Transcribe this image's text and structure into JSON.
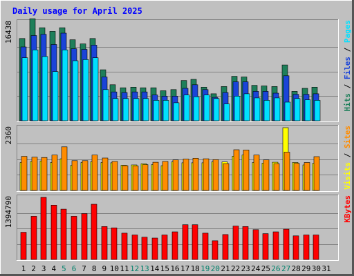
{
  "colors": {
    "title": "#0000ff",
    "background": "#c0c0c0",
    "hits": "#1e7f5a",
    "files": "#1a44d8",
    "pages": "#00e0ff",
    "visits": "#ffff00",
    "sites": "#ff8c00",
    "kbytes": "#ff0000",
    "weekend_label": "#00806a"
  },
  "chart_data": {
    "type": "bar",
    "title": "Daily usage for April 2025",
    "days": [
      "1",
      "2",
      "3",
      "4",
      "5",
      "6",
      "7",
      "8",
      "9",
      "10",
      "11",
      "12",
      "13",
      "14",
      "15",
      "16",
      "17",
      "18",
      "19",
      "20",
      "21",
      "22",
      "23",
      "24",
      "25",
      "26",
      "27",
      "28",
      "29",
      "30",
      "31"
    ],
    "weekend_days": [
      "5",
      "6",
      "12",
      "13",
      "19",
      "20",
      "26",
      "27"
    ],
    "panels": [
      {
        "ylabel": "16438",
        "ymax": 16438,
        "side_labels": [
          "Hits",
          "Files",
          "Pages"
        ],
        "series": [
          {
            "name": "Hits",
            "values": [
              13700,
              17000,
              15500,
              14900,
              15500,
              13500,
              12800,
              13700,
              8500,
              6000,
              5500,
              5600,
              5500,
              5500,
              5000,
              5200,
              6700,
              6900,
              5600,
              4500,
              5700,
              7400,
              7300,
              5900,
              5800,
              5700,
              9300,
              4900,
              5400,
              5600
            ]
          },
          {
            "name": "Files",
            "values": [
              12300,
              14200,
              14400,
              12700,
              14600,
              12000,
              11900,
              12600,
              7300,
              4800,
              4700,
              4800,
              4800,
              4300,
              4100,
              4100,
              5400,
              6000,
              5200,
              3900,
              4700,
              6500,
              6500,
              4900,
              4900,
              4600,
              7500,
              4400,
              4400,
              4500
            ]
          },
          {
            "name": "Pages",
            "values": [
              10500,
              11800,
              10700,
              8200,
              11800,
              10000,
              10200,
              10500,
              5200,
              3700,
              3700,
              3700,
              3700,
              3400,
              3400,
              3000,
              4300,
              4000,
              4300,
              3700,
              2800,
              4100,
              4500,
              3800,
              3400,
              3800,
              3100,
              3700,
              3500,
              3400
            ]
          }
        ]
      },
      {
        "ylabel": "2360",
        "ymax": 2360,
        "side_labels": [
          "Visits",
          "Sites"
        ],
        "series": [
          {
            "name": "Visits",
            "values": [
              1050,
              1090,
              1110,
              1050,
              1190,
              940,
              1050,
              1080,
              1050,
              1040,
              950,
              960,
              1000,
              970,
              930,
              1070,
              1040,
              1040,
              1040,
              1070,
              1070,
              1290,
              1330,
              1050,
              1030,
              1060,
              2360,
              1050,
              960,
              1020
            ]
          },
          {
            "name": "Sites",
            "values": [
              1280,
              1250,
              1240,
              1330,
              1640,
              1120,
              1120,
              1330,
              1220,
              1090,
              930,
              920,
              970,
              1060,
              1090,
              1150,
              1180,
              1210,
              1190,
              1160,
              1010,
              1530,
              1520,
              1330,
              1150,
              1010,
              1440,
              1020,
              1050,
              1270
            ]
          }
        ]
      },
      {
        "ylabel": "1394790",
        "ymax": 1394790,
        "side_labels": [
          "KBytes"
        ],
        "series": [
          {
            "name": "KBytes",
            "values": [
              610000,
              970000,
              1394790,
              1220000,
              1130000,
              970000,
              1030000,
              1240000,
              740000,
              710000,
              590000,
              550000,
              500000,
              480000,
              550000,
              620000,
              780000,
              780000,
              590000,
              420000,
              560000,
              750000,
              740000,
              670000,
              580000,
              620000,
              680000,
              530000,
              550000,
              550000
            ]
          }
        ]
      }
    ]
  }
}
